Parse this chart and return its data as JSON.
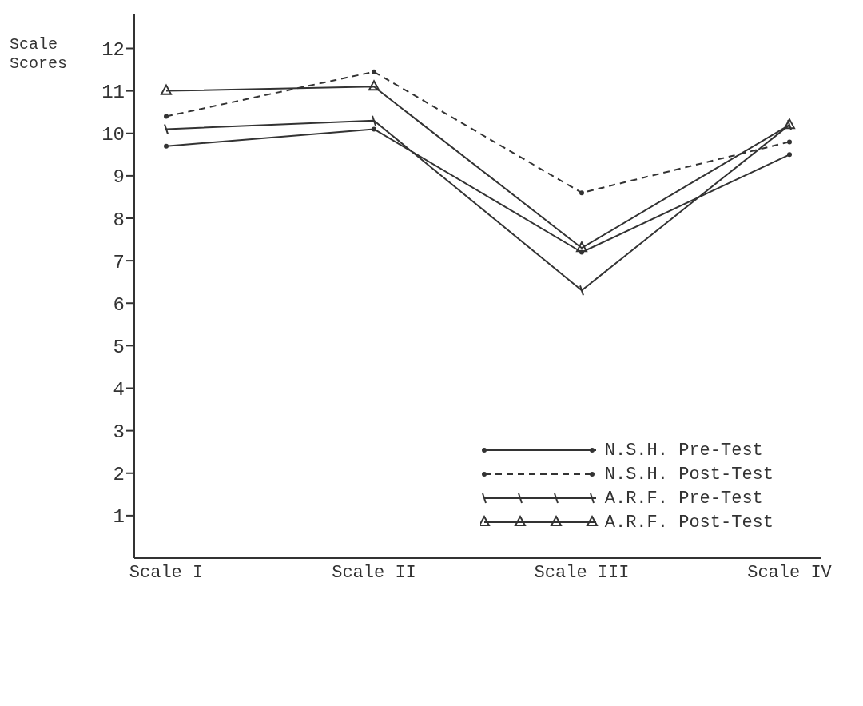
{
  "chart_data": {
    "type": "line",
    "ylabel": "Scale Scores",
    "categories": [
      "Scale I",
      "Scale II",
      "Scale III",
      "Scale IV"
    ],
    "series": [
      {
        "name": "N.S.H. Pre-Test",
        "color": "#333333",
        "values": [
          9.7,
          10.1,
          7.2,
          9.5
        ],
        "marker": "circle",
        "line_style": "solid"
      },
      {
        "name": "N.S.H. Post-Test",
        "color": "#333333",
        "values": [
          10.4,
          11.45,
          8.6,
          9.8
        ],
        "marker": "circle",
        "line_style": "dashed"
      },
      {
        "name": "A.R.F. Pre-Test",
        "color": "#333333",
        "values": [
          10.1,
          10.3,
          6.3,
          10.2
        ],
        "marker": "cross",
        "line_style": "solid"
      },
      {
        "name": "A.R.F. Post-Test",
        "color": "#333333",
        "values": [
          11.0,
          11.1,
          7.3,
          10.2
        ],
        "marker": "triangle",
        "line_style": "solid"
      }
    ],
    "ylim": [
      0,
      12.8
    ],
    "yticks": [
      1,
      2,
      3,
      4,
      5,
      6,
      7,
      8,
      9,
      10,
      11,
      12
    ],
    "grid": false,
    "legend": "bottom right"
  }
}
